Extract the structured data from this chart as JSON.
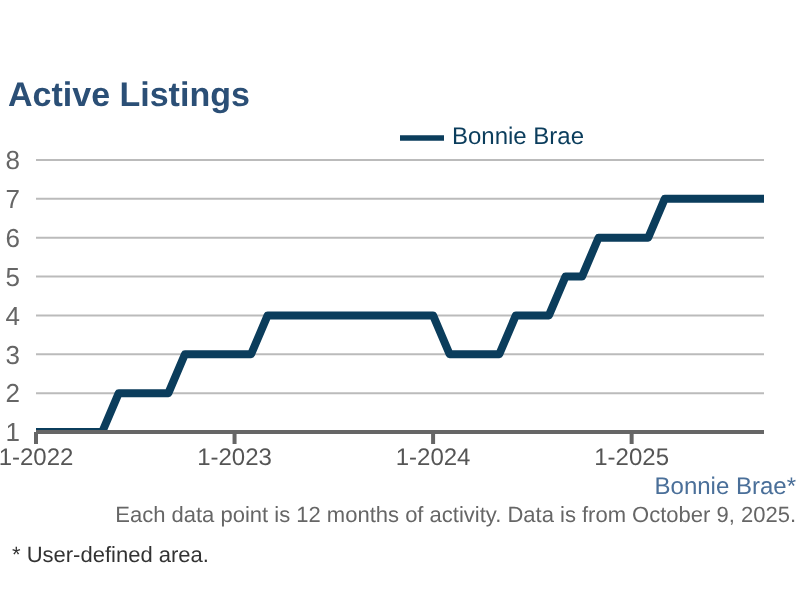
{
  "chart_data": {
    "type": "line",
    "title": "Active Listings",
    "x": [
      "2022-01",
      "2022-02",
      "2022-03",
      "2022-04",
      "2022-05",
      "2022-06",
      "2022-07",
      "2022-08",
      "2022-09",
      "2022-10",
      "2022-11",
      "2022-12",
      "2023-01",
      "2023-02",
      "2023-03",
      "2023-04",
      "2023-05",
      "2023-06",
      "2023-07",
      "2023-08",
      "2023-09",
      "2023-10",
      "2023-11",
      "2023-12",
      "2024-01",
      "2024-02",
      "2024-03",
      "2024-04",
      "2024-05",
      "2024-06",
      "2024-07",
      "2024-08",
      "2024-09",
      "2024-10",
      "2024-11",
      "2024-12",
      "2025-01",
      "2025-02",
      "2025-03",
      "2025-04",
      "2025-05",
      "2025-06",
      "2025-07",
      "2025-08",
      "2025-09"
    ],
    "series": [
      {
        "name": "Bonnie Brae",
        "color": "#0b3d5c",
        "values": [
          1,
          1,
          1,
          1,
          1,
          2,
          2,
          2,
          2,
          3,
          3,
          3,
          3,
          3,
          4,
          4,
          4,
          4,
          4,
          4,
          4,
          4,
          4,
          4,
          4,
          3,
          3,
          3,
          3,
          4,
          4,
          4,
          5,
          5,
          6,
          6,
          6,
          6,
          7,
          7,
          7,
          7,
          7,
          7,
          7
        ]
      }
    ],
    "xlim": [
      "2022-01",
      "2025-09"
    ],
    "xticks": [
      {
        "value": "2022-01",
        "label": "1-2022"
      },
      {
        "value": "2023-01",
        "label": "1-2023"
      },
      {
        "value": "2024-01",
        "label": "1-2024"
      },
      {
        "value": "2025-01",
        "label": "1-2025"
      }
    ],
    "ylim": [
      1,
      8
    ],
    "yticks": [
      1,
      2,
      3,
      4,
      5,
      6,
      7,
      8
    ],
    "grid": "y",
    "legend": "top",
    "marker": "none",
    "line_style": "solid",
    "annotations": [
      "Bonnie Brae*",
      "Each data point is 12 months of activity. Data is from October 9, 2025.",
      "* User-defined area."
    ]
  }
}
